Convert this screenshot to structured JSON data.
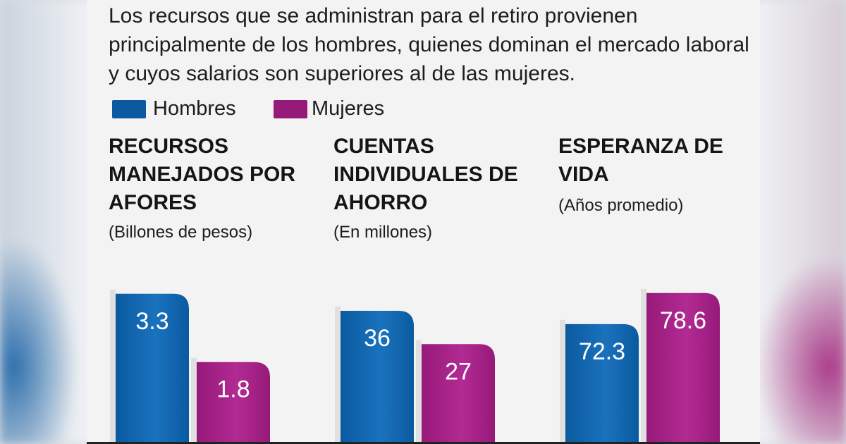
{
  "intro_text": "Los recursos que se administran para el retiro provienen principalmente de los  hombres, quienes dominan el mercado laboral y cuyos salarios son superiores al de las mujeres.",
  "legend": [
    {
      "label": "Hombres",
      "color": "#0b5aa0"
    },
    {
      "label": "Mujeres",
      "color": "#961a79"
    }
  ],
  "colors": {
    "hombres": "#0b5aa0",
    "hombres_light": "#1a72bd",
    "mujeres": "#961a79",
    "mujeres_light": "#b22a93"
  },
  "chart_data": [
    {
      "type": "bar",
      "title": "RECURSOS MANEJADOS POR AFORES",
      "subtitle": "(Billones de pesos)",
      "categories": [
        "Hombres",
        "Mujeres"
      ],
      "values": [
        3.3,
        1.8
      ],
      "value_labels": [
        "3.3",
        "1.8"
      ],
      "ylim": [
        0,
        3.9
      ]
    },
    {
      "type": "bar",
      "title": "CUENTAS INDIVIDUALES DE AHORRO",
      "subtitle": "(En millones)",
      "categories": [
        "Hombres",
        "Mujeres"
      ],
      "values": [
        36,
        27
      ],
      "value_labels": [
        "36",
        "27"
      ],
      "ylim": [
        0,
        48
      ]
    },
    {
      "type": "bar",
      "title": "ESPERANZA DE VIDA",
      "subtitle": "(Años promedio)",
      "categories": [
        "Hombres",
        "Mujeres"
      ],
      "values": [
        72.3,
        78.6
      ],
      "value_labels": [
        "72.3",
        "78.6"
      ],
      "ylim": [
        48,
        84
      ]
    }
  ]
}
